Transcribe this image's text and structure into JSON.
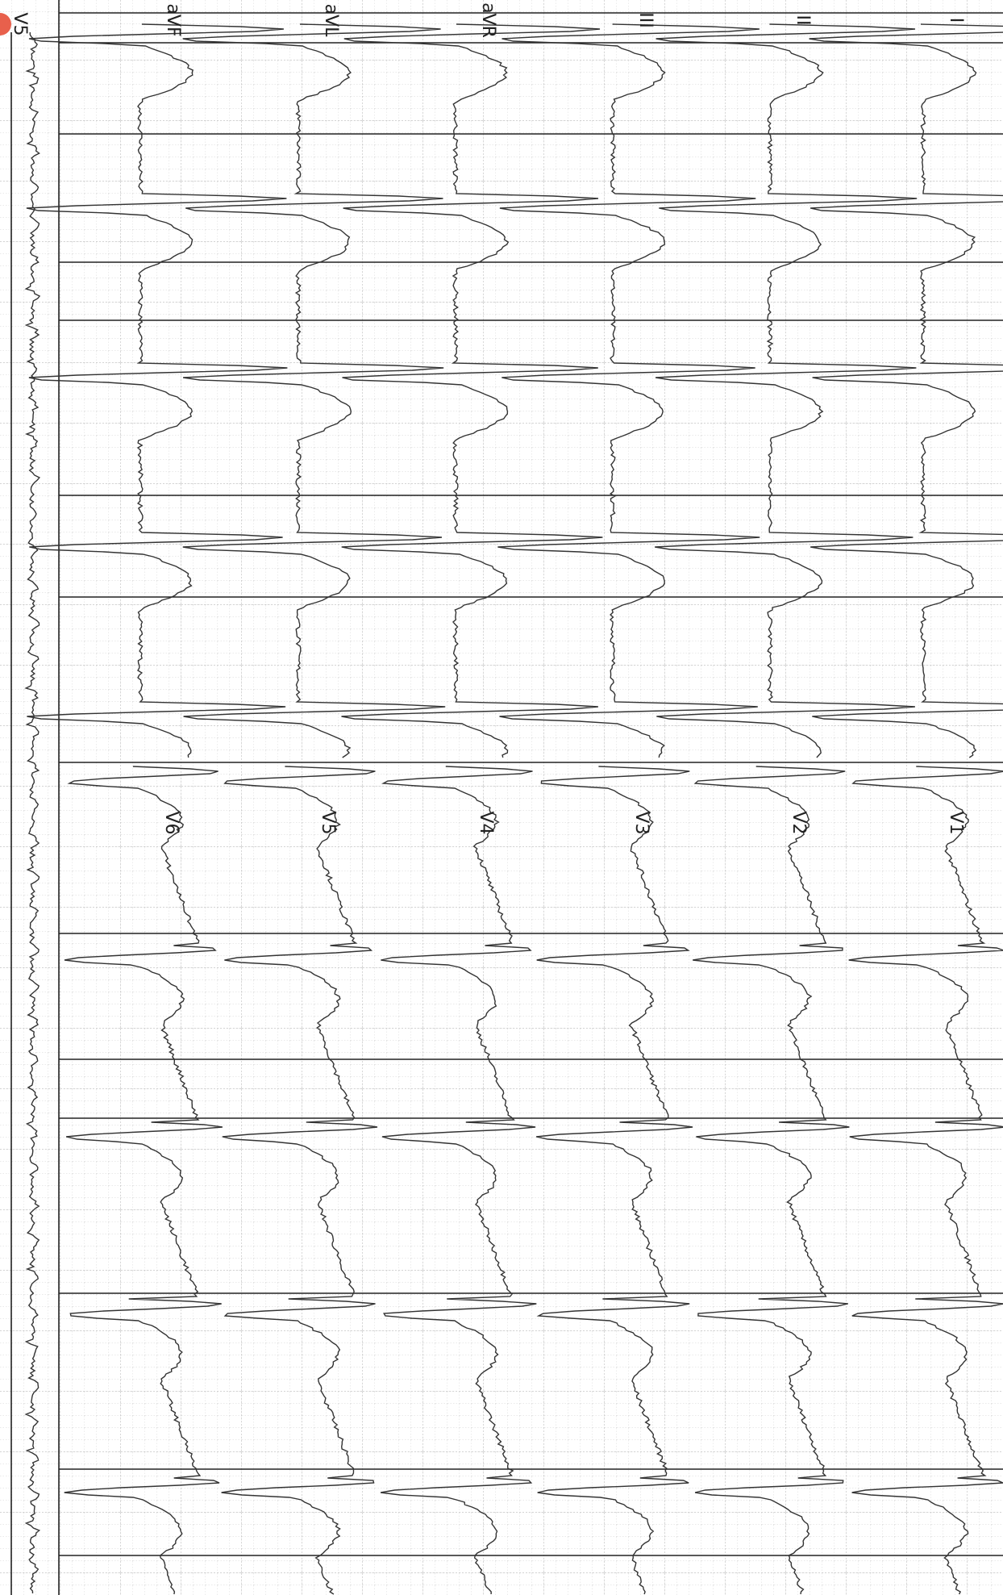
{
  "limb_leads": [
    "I",
    "II",
    "III",
    "aVR",
    "aVL",
    "aVF"
  ],
  "chest_leads": [
    "V1",
    "V2",
    "V3",
    "V4",
    "V5",
    "V6"
  ],
  "rhythm_lead": "V5"
}
